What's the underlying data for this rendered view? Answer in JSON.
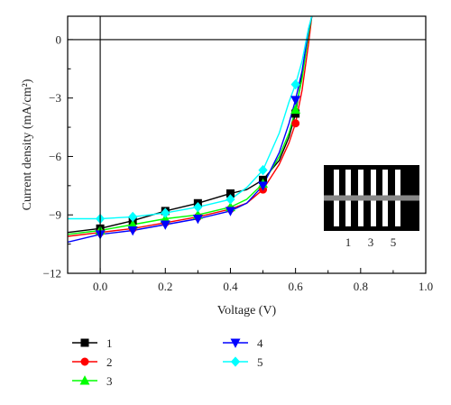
{
  "chart_data": {
    "type": "line",
    "title": "",
    "xlabel": "Voltage (V)",
    "ylabel": "Current density (mA/cm²)",
    "xlim": [
      -0.1,
      1.0
    ],
    "ylim": [
      -12,
      1.2
    ],
    "xticks": [
      0.0,
      0.2,
      0.4,
      0.6,
      0.8,
      1.0
    ],
    "xtick_labels": [
      "0.0",
      "0.2",
      "0.4",
      "0.6",
      "0.8",
      "1.0"
    ],
    "yticks": [
      0,
      -3,
      -6,
      -9,
      -12
    ],
    "ytick_labels": [
      "0",
      "−3",
      "−6",
      "−9",
      "−12"
    ],
    "zero_lines": true,
    "grid": false,
    "legend_position": "bottom",
    "series": [
      {
        "name": "1",
        "color": "#000000",
        "marker": "square",
        "x": [
          -0.1,
          0.0,
          0.1,
          0.2,
          0.3,
          0.4,
          0.45,
          0.5,
          0.55,
          0.58,
          0.6,
          0.62,
          0.64,
          0.65
        ],
        "y": [
          -9.9,
          -9.7,
          -9.3,
          -8.8,
          -8.4,
          -7.9,
          -7.7,
          -7.2,
          -6.2,
          -5.0,
          -3.8,
          -1.8,
          0.5,
          1.2
        ]
      },
      {
        "name": "2",
        "color": "#ff0000",
        "marker": "circle",
        "x": [
          -0.1,
          0.0,
          0.1,
          0.2,
          0.3,
          0.4,
          0.45,
          0.5,
          0.55,
          0.58,
          0.6,
          0.62,
          0.64,
          0.65
        ],
        "y": [
          -10.1,
          -9.9,
          -9.7,
          -9.4,
          -9.1,
          -8.7,
          -8.4,
          -7.7,
          -6.4,
          -5.3,
          -4.3,
          -2.6,
          -0.2,
          1.2
        ]
      },
      {
        "name": "3",
        "color": "#00ff00",
        "marker": "triangle-up",
        "x": [
          -0.1,
          0.0,
          0.1,
          0.2,
          0.3,
          0.4,
          0.45,
          0.5,
          0.55,
          0.58,
          0.6,
          0.62,
          0.64,
          0.65
        ],
        "y": [
          -10.0,
          -9.8,
          -9.5,
          -9.2,
          -9.0,
          -8.6,
          -8.2,
          -7.4,
          -6.0,
          -4.8,
          -3.6,
          -2.0,
          0.3,
          1.2
        ]
      },
      {
        "name": "4",
        "color": "#0000ff",
        "marker": "triangle-down",
        "x": [
          -0.1,
          0.0,
          0.1,
          0.2,
          0.3,
          0.4,
          0.45,
          0.5,
          0.55,
          0.58,
          0.6,
          0.62,
          0.64,
          0.65
        ],
        "y": [
          -10.4,
          -10.0,
          -9.8,
          -9.5,
          -9.2,
          -8.8,
          -8.4,
          -7.5,
          -5.8,
          -4.3,
          -3.1,
          -1.6,
          0.5,
          1.2
        ]
      },
      {
        "name": "5",
        "color": "#00ffff",
        "marker": "diamond",
        "x": [
          -0.1,
          0.0,
          0.1,
          0.2,
          0.3,
          0.4,
          0.45,
          0.5,
          0.55,
          0.58,
          0.6,
          0.62,
          0.64,
          0.65
        ],
        "y": [
          -9.2,
          -9.2,
          -9.1,
          -8.9,
          -8.6,
          -8.2,
          -7.6,
          -6.7,
          -4.8,
          -3.2,
          -2.3,
          -1.1,
          0.6,
          1.2
        ]
      }
    ],
    "marker_x": [
      0.0,
      0.1,
      0.2,
      0.3,
      0.4,
      0.5,
      0.6
    ],
    "inset": {
      "labels": [
        "1",
        "3",
        "5"
      ],
      "fill_color": "#000000",
      "stripe_color": "#ffffff",
      "band_color": "#888888"
    }
  }
}
